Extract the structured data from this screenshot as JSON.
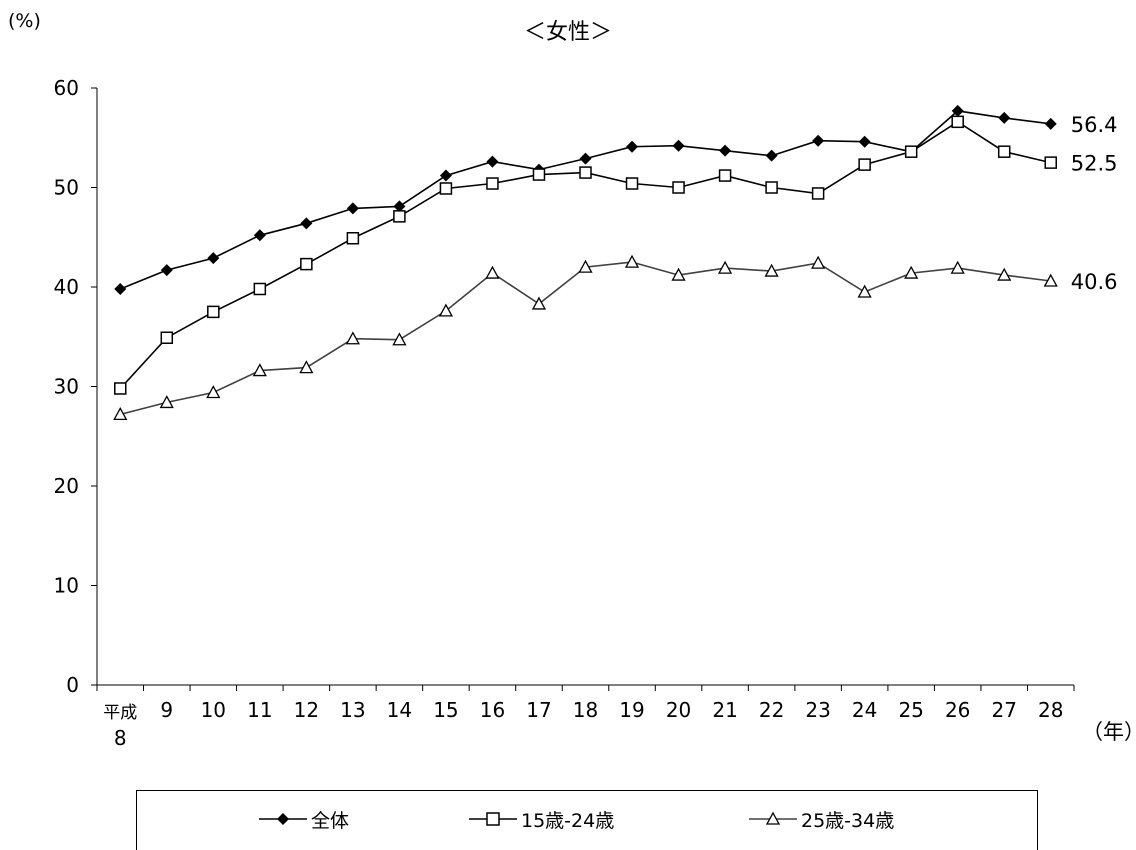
{
  "chart_data": {
    "type": "line",
    "title": "＜女性＞",
    "ylabel": "(%)",
    "xlabel": "（年）",
    "ylim": [
      0,
      60
    ],
    "yticks": [
      0,
      10,
      20,
      30,
      40,
      50,
      60
    ],
    "categories": [
      "平成8",
      "9",
      "10",
      "11",
      "12",
      "13",
      "14",
      "15",
      "16",
      "17",
      "18",
      "19",
      "20",
      "21",
      "22",
      "23",
      "24",
      "25",
      "26",
      "27",
      "28"
    ],
    "first_category_lines": [
      "平成",
      "8"
    ],
    "grid": false,
    "legend_position": "bottom",
    "series": [
      {
        "name": "全体",
        "marker": "diamond",
        "color": "#000000",
        "values": [
          39.8,
          41.7,
          42.9,
          45.2,
          46.4,
          47.9,
          48.1,
          51.2,
          52.6,
          51.8,
          52.9,
          54.1,
          54.2,
          53.7,
          53.2,
          54.7,
          54.6,
          53.6,
          57.7,
          57.0,
          56.4
        ],
        "end_label": "56.4"
      },
      {
        "name": "15歳-24歳",
        "marker": "square",
        "color": "#000000",
        "values": [
          29.8,
          34.9,
          37.5,
          39.8,
          42.3,
          44.9,
          47.1,
          49.9,
          50.4,
          51.3,
          51.5,
          50.4,
          50.0,
          51.2,
          50.0,
          49.4,
          52.3,
          53.6,
          56.6,
          53.6,
          52.5
        ],
        "end_label": "52.5"
      },
      {
        "name": "25歳-34歳",
        "marker": "triangle",
        "color": "#404040",
        "values": [
          27.2,
          28.4,
          29.4,
          31.6,
          31.9,
          34.8,
          34.7,
          37.6,
          41.4,
          38.3,
          42.0,
          42.5,
          41.2,
          41.9,
          41.6,
          42.4,
          39.5,
          41.4,
          41.9,
          41.2,
          40.6
        ],
        "end_label": "40.6"
      }
    ]
  }
}
